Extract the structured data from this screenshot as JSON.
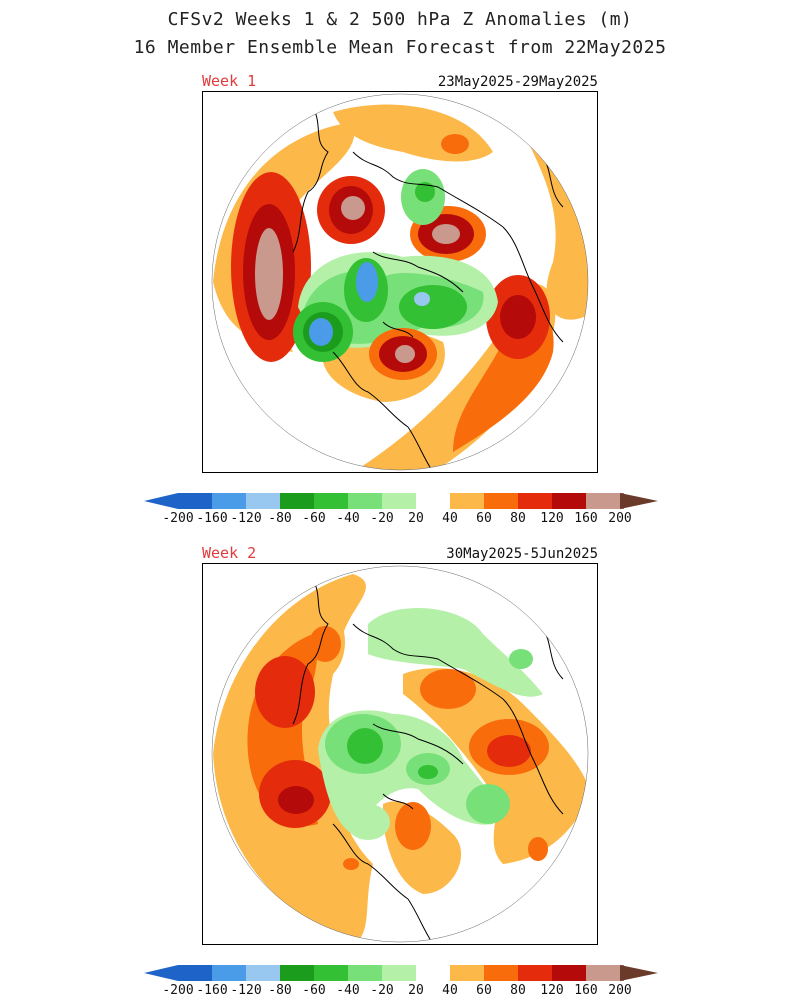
{
  "header": {
    "title_line1": "CFSv2 Weeks 1 & 2 500 hPa Z Anomalies (m)",
    "title_line2": "16 Member Ensemble Mean Forecast from 22May2025"
  },
  "panels": [
    {
      "week": "Week 1",
      "dates": "23May2025-29May2025"
    },
    {
      "week": "Week 2",
      "dates": "30May2025-5Jun2025"
    }
  ],
  "colors": {
    "m200": "#1e64c8",
    "m160": "#4a9be8",
    "m120": "#98c8f0",
    "m80": "#1c9c1c",
    "m60": "#34c034",
    "m40": "#78e078",
    "m20": "#b4f0a8",
    "zero": "#ffffff",
    "p20": "#fdb84a",
    "p40": "#f86c0c",
    "p60": "#e42c0c",
    "p80": "#b40a0a",
    "p120": "#c8998c",
    "p160": "#a87a6c",
    "p200": "#6a3a2a",
    "coast": "#000000"
  },
  "colorbar": {
    "ticks": [
      "-200",
      "-160",
      "-120",
      "-80",
      "-60",
      "-40",
      "-20",
      "20",
      "40",
      "60",
      "80",
      "120",
      "160",
      "200"
    ]
  }
}
